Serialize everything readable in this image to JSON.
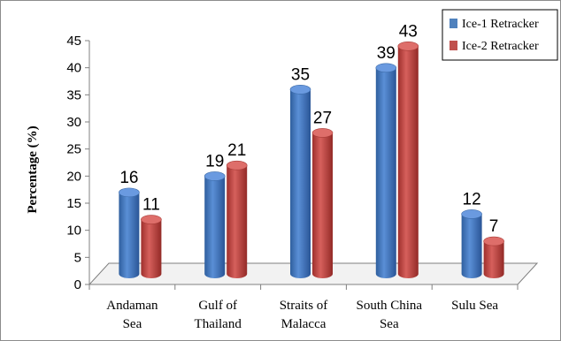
{
  "chart_data": {
    "type": "bar",
    "style": "3d-cylinder-clustered",
    "categories": [
      [
        "Andaman",
        "Sea"
      ],
      [
        "Gulf of",
        "Thailand"
      ],
      [
        "Straits of",
        "Malacca"
      ],
      [
        "South China",
        "Sea"
      ],
      [
        "Sulu Sea"
      ]
    ],
    "series": [
      {
        "name": "Ice-1 Retracker",
        "values": [
          16,
          19,
          35,
          39,
          12
        ],
        "color": "#4f81bd"
      },
      {
        "name": "Ice-2 Retracker",
        "values": [
          11,
          21,
          27,
          43,
          7
        ],
        "color": "#c0504d"
      }
    ],
    "ylabel": "Percentage (%)",
    "xlabel": "",
    "ylim": [
      0,
      45
    ],
    "yticks": [
      0,
      5,
      10,
      15,
      20,
      25,
      30,
      35,
      40,
      45
    ],
    "grid": false,
    "legend_position": "top-right",
    "data_labels": true
  }
}
